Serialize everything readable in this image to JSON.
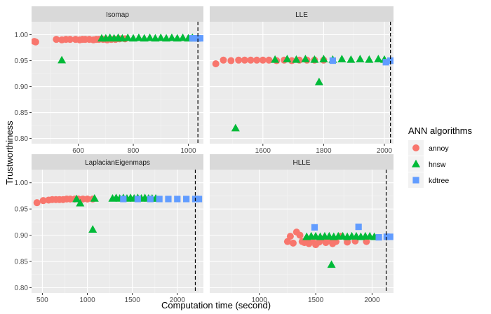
{
  "chart_data": {
    "type": "scatter",
    "x_axis_title": "Computation time (second)",
    "y_axis_title": "Trustworthiness",
    "legend": {
      "title": "ANN algorithms",
      "entries": [
        {
          "name": "annoy",
          "color": "#F8766D",
          "shape": "circle"
        },
        {
          "name": "hnsw",
          "color": "#00BA38",
          "shape": "triangle"
        },
        {
          "name": "kdtree",
          "color": "#619CFF",
          "shape": "square"
        }
      ]
    },
    "grid": true,
    "ylim": [
      0.79,
      1.025
    ],
    "y_ticks": [
      0.8,
      0.85,
      0.9,
      0.95,
      1.0
    ],
    "y_tick_labels": [
      "0.80",
      "0.85",
      "0.90",
      "0.95",
      "1.00"
    ],
    "panels": [
      {
        "title": "Isomap",
        "xlim": [
          430,
          1055
        ],
        "x_ticks": [
          600,
          800,
          1000
        ],
        "x_tick_labels": [
          "600",
          "800",
          "1000"
        ],
        "vline": 1035,
        "series": [
          {
            "name": "annoy",
            "points": [
              [
                440,
                0.987
              ],
              [
                445,
                0.986
              ],
              [
                520,
                0.991
              ],
              [
                540,
                0.99
              ],
              [
                555,
                0.991
              ],
              [
                570,
                0.991
              ],
              [
                590,
                0.991
              ],
              [
                605,
                0.99
              ],
              [
                615,
                0.991
              ],
              [
                625,
                0.991
              ],
              [
                640,
                0.991
              ],
              [
                655,
                0.99
              ],
              [
                665,
                0.991
              ],
              [
                675,
                0.991
              ],
              [
                690,
                0.991
              ],
              [
                705,
                0.99
              ],
              [
                720,
                0.991
              ],
              [
                735,
                0.991
              ],
              [
                750,
                0.992
              ],
              [
                770,
                0.992
              ]
            ]
          },
          {
            "name": "hnsw",
            "points": [
              [
                540,
                0.951
              ],
              [
                685,
                0.993
              ],
              [
                700,
                0.993
              ],
              [
                715,
                0.994
              ],
              [
                730,
                0.993
              ],
              [
                745,
                0.994
              ],
              [
                760,
                0.993
              ],
              [
                780,
                0.994
              ],
              [
                800,
                0.993
              ],
              [
                820,
                0.994
              ],
              [
                840,
                0.993
              ],
              [
                860,
                0.994
              ],
              [
                880,
                0.993
              ],
              [
                900,
                0.994
              ],
              [
                920,
                0.993
              ],
              [
                940,
                0.994
              ],
              [
                960,
                0.993
              ],
              [
                980,
                0.994
              ],
              [
                1000,
                0.993
              ],
              [
                1015,
                0.994
              ]
            ]
          },
          {
            "name": "kdtree",
            "points": [
              [
                1015,
                0.993
              ],
              [
                1025,
                0.993
              ],
              [
                1035,
                0.993
              ],
              [
                1045,
                0.993
              ]
            ]
          }
        ]
      },
      {
        "title": "LLE",
        "xlim": [
          1425,
          2030
        ],
        "x_ticks": [
          1600,
          1800,
          2000
        ],
        "x_tick_labels": [
          "1600",
          "1800",
          "2000"
        ],
        "vline": 2020,
        "series": [
          {
            "name": "annoy",
            "points": [
              [
                1445,
                0.944
              ],
              [
                1470,
                0.951
              ],
              [
                1495,
                0.95
              ],
              [
                1520,
                0.951
              ],
              [
                1540,
                0.951
              ],
              [
                1560,
                0.951
              ],
              [
                1580,
                0.951
              ],
              [
                1600,
                0.951
              ],
              [
                1620,
                0.951
              ],
              [
                1645,
                0.95
              ],
              [
                1670,
                0.951
              ],
              [
                1695,
                0.95
              ],
              [
                1720,
                0.951
              ],
              [
                1745,
                0.951
              ],
              [
                1770,
                0.951
              ],
              [
                1800,
                0.951
              ]
            ]
          },
          {
            "name": "hnsw",
            "points": [
              [
                1510,
                0.82
              ],
              [
                1785,
                0.909
              ],
              [
                1640,
                0.952
              ],
              [
                1680,
                0.953
              ],
              [
                1710,
                0.952
              ],
              [
                1740,
                0.953
              ],
              [
                1770,
                0.952
              ],
              [
                1800,
                0.953
              ],
              [
                1830,
                0.952
              ],
              [
                1860,
                0.953
              ],
              [
                1890,
                0.952
              ],
              [
                1920,
                0.953
              ],
              [
                1950,
                0.952
              ],
              [
                1980,
                0.953
              ],
              [
                2000,
                0.952
              ]
            ]
          },
          {
            "name": "kdtree",
            "points": [
              [
                1830,
                0.95
              ],
              [
                2005,
                0.947
              ],
              [
                2020,
                0.95
              ],
              [
                2025,
                0.95
              ]
            ]
          }
        ]
      },
      {
        "title": "LaplacianEigenmaps",
        "xlim": [
          380,
          2290
        ],
        "x_ticks": [
          500,
          1000,
          1500,
          2000
        ],
        "x_tick_labels": [
          "500",
          "1000",
          "1500",
          "2000"
        ],
        "vline": 2200,
        "series": [
          {
            "name": "annoy",
            "points": [
              [
                440,
                0.962
              ],
              [
                510,
                0.966
              ],
              [
                570,
                0.967
              ],
              [
                610,
                0.968
              ],
              [
                650,
                0.968
              ],
              [
                690,
                0.968
              ],
              [
                730,
                0.968
              ],
              [
                770,
                0.969
              ],
              [
                810,
                0.969
              ],
              [
                860,
                0.969
              ],
              [
                900,
                0.969
              ],
              [
                950,
                0.969
              ],
              [
                1000,
                0.969
              ],
              [
                1060,
                0.969
              ]
            ]
          },
          {
            "name": "hnsw",
            "points": [
              [
                880,
                0.969
              ],
              [
                920,
                0.961
              ],
              [
                1060,
                0.911
              ],
              [
                1080,
                0.97
              ],
              [
                1280,
                0.97
              ],
              [
                1320,
                0.971
              ],
              [
                1360,
                0.97
              ],
              [
                1400,
                0.971
              ],
              [
                1440,
                0.97
              ],
              [
                1480,
                0.971
              ],
              [
                1520,
                0.97
              ],
              [
                1560,
                0.971
              ],
              [
                1600,
                0.97
              ],
              [
                1640,
                0.971
              ],
              [
                1680,
                0.97
              ],
              [
                1720,
                0.97
              ],
              [
                1760,
                0.97
              ]
            ]
          },
          {
            "name": "kdtree",
            "points": [
              [
                1400,
                0.969
              ],
              [
                1560,
                0.969
              ],
              [
                1700,
                0.969
              ],
              [
                1800,
                0.969
              ],
              [
                1900,
                0.969
              ],
              [
                2000,
                0.969
              ],
              [
                2100,
                0.969
              ],
              [
                2200,
                0.969
              ],
              [
                2240,
                0.969
              ]
            ]
          }
        ]
      },
      {
        "title": "HLLE",
        "xlim": [
          560,
          2190
        ],
        "x_ticks": [
          1000,
          1500,
          2000
        ],
        "x_tick_labels": [
          "1000",
          "1500",
          "2000"
        ],
        "vline": 2125,
        "series": [
          {
            "name": "annoy",
            "points": [
              [
                1250,
                0.888
              ],
              [
                1275,
                0.898
              ],
              [
                1300,
                0.885
              ],
              [
                1330,
                0.906
              ],
              [
                1360,
                0.9
              ],
              [
                1380,
                0.888
              ],
              [
                1400,
                0.886
              ],
              [
                1420,
                0.893
              ],
              [
                1440,
                0.884
              ],
              [
                1470,
                0.89
              ],
              [
                1500,
                0.882
              ],
              [
                1530,
                0.887
              ],
              [
                1560,
                0.893
              ],
              [
                1590,
                0.886
              ],
              [
                1620,
                0.89
              ],
              [
                1650,
                0.884
              ],
              [
                1680,
                0.888
              ],
              [
                1720,
                0.898
              ],
              [
                1780,
                0.887
              ],
              [
                1850,
                0.889
              ],
              [
                1950,
                0.888
              ]
            ]
          },
          {
            "name": "hnsw",
            "points": [
              [
                1640,
                0.844
              ],
              [
                1420,
                0.897
              ],
              [
                1460,
                0.898
              ],
              [
                1500,
                0.898
              ],
              [
                1540,
                0.897
              ],
              [
                1580,
                0.898
              ],
              [
                1620,
                0.898
              ],
              [
                1660,
                0.897
              ],
              [
                1700,
                0.898
              ],
              [
                1740,
                0.898
              ],
              [
                1780,
                0.897
              ],
              [
                1820,
                0.898
              ],
              [
                1860,
                0.898
              ],
              [
                1900,
                0.897
              ],
              [
                1940,
                0.898
              ],
              [
                1980,
                0.898
              ],
              [
                2020,
                0.897
              ]
            ]
          },
          {
            "name": "kdtree",
            "points": [
              [
                1490,
                0.915
              ],
              [
                1880,
                0.916
              ],
              [
                2060,
                0.896
              ],
              [
                2130,
                0.897
              ],
              [
                2160,
                0.897
              ]
            ]
          }
        ]
      }
    ]
  }
}
